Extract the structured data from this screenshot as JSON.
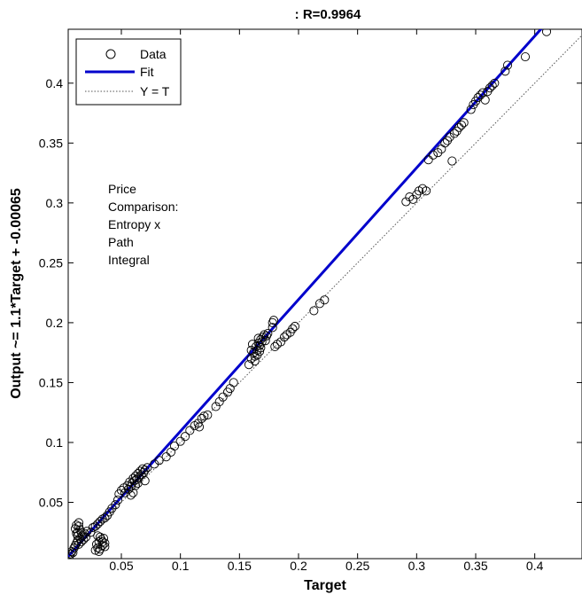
{
  "chart_data": {
    "type": "scatter",
    "title": ": R=0.9964",
    "xlabel": "Target",
    "ylabel": "Output ~= 1.1*Target + -0.00065",
    "xlim": [
      0.005,
      0.44
    ],
    "ylim": [
      0.003,
      0.445
    ],
    "xticks": [
      0.05,
      0.1,
      0.15,
      0.2,
      0.25,
      0.3,
      0.35,
      0.4
    ],
    "yticks": [
      0.05,
      0.1,
      0.15,
      0.2,
      0.25,
      0.3,
      0.35,
      0.4
    ],
    "xtick_labels": [
      "0.05",
      "0.1",
      "0.15",
      "0.2",
      "0.25",
      "0.3",
      "0.35",
      "0.4"
    ],
    "ytick_labels": [
      "0.05",
      "0.1",
      "0.15",
      "0.2",
      "0.25",
      "0.3",
      "0.35",
      "0.4"
    ],
    "grid": false,
    "legend_position": "top-left",
    "legend": [
      {
        "label": "Data",
        "style": "marker",
        "color": "#000000"
      },
      {
        "label": "Fit",
        "style": "line",
        "color": "#0000cc"
      },
      {
        "label": "Y = T",
        "style": "dotted",
        "color": "#555555"
      }
    ],
    "annotation": [
      "Price",
      "Comparison:",
      "Entropy x",
      "Path",
      "Integral"
    ],
    "fit": {
      "slope": 1.1,
      "intercept": -0.00065,
      "color": "#0000cc"
    },
    "identity_line": {
      "color": "#555555"
    },
    "series": [
      {
        "name": "Data",
        "points": [
          [
            0.006,
            0.005
          ],
          [
            0.007,
            0.007
          ],
          [
            0.008,
            0.009
          ],
          [
            0.009,
            0.008
          ],
          [
            0.01,
            0.012
          ],
          [
            0.011,
            0.014
          ],
          [
            0.012,
            0.016
          ],
          [
            0.013,
            0.018
          ],
          [
            0.014,
            0.015
          ],
          [
            0.015,
            0.02
          ],
          [
            0.016,
            0.017
          ],
          [
            0.017,
            0.022
          ],
          [
            0.018,
            0.019
          ],
          [
            0.019,
            0.024
          ],
          [
            0.02,
            0.021
          ],
          [
            0.021,
            0.026
          ],
          [
            0.011,
            0.028
          ],
          [
            0.012,
            0.031
          ],
          [
            0.013,
            0.025
          ],
          [
            0.014,
            0.03
          ],
          [
            0.013,
            0.022
          ],
          [
            0.015,
            0.027
          ],
          [
            0.012,
            0.024
          ],
          [
            0.014,
            0.033
          ],
          [
            0.016,
            0.025
          ],
          [
            0.024,
            0.025
          ],
          [
            0.026,
            0.029
          ],
          [
            0.028,
            0.03
          ],
          [
            0.03,
            0.032
          ],
          [
            0.032,
            0.034
          ],
          [
            0.034,
            0.036
          ],
          [
            0.036,
            0.037
          ],
          [
            0.038,
            0.039
          ],
          [
            0.028,
            0.01
          ],
          [
            0.029,
            0.015
          ],
          [
            0.03,
            0.012
          ],
          [
            0.031,
            0.017
          ],
          [
            0.032,
            0.011
          ],
          [
            0.033,
            0.019
          ],
          [
            0.034,
            0.014
          ],
          [
            0.035,
            0.02
          ],
          [
            0.036,
            0.013
          ],
          [
            0.034,
            0.017
          ],
          [
            0.032,
            0.021
          ],
          [
            0.03,
            0.022
          ],
          [
            0.036,
            0.016
          ],
          [
            0.031,
            0.009
          ],
          [
            0.04,
            0.042
          ],
          [
            0.042,
            0.045
          ],
          [
            0.045,
            0.048
          ],
          [
            0.047,
            0.052
          ],
          [
            0.048,
            0.057
          ],
          [
            0.05,
            0.06
          ],
          [
            0.052,
            0.062
          ],
          [
            0.053,
            0.058
          ],
          [
            0.055,
            0.064
          ],
          [
            0.056,
            0.061
          ],
          [
            0.057,
            0.067
          ],
          [
            0.058,
            0.063
          ],
          [
            0.059,
            0.066
          ],
          [
            0.06,
            0.07
          ],
          [
            0.061,
            0.068
          ],
          [
            0.062,
            0.072
          ],
          [
            0.063,
            0.069
          ],
          [
            0.064,
            0.074
          ],
          [
            0.065,
            0.071
          ],
          [
            0.066,
            0.076
          ],
          [
            0.067,
            0.073
          ],
          [
            0.068,
            0.078
          ],
          [
            0.069,
            0.075
          ],
          [
            0.07,
            0.077
          ],
          [
            0.072,
            0.079
          ],
          [
            0.06,
            0.058
          ],
          [
            0.062,
            0.064
          ],
          [
            0.064,
            0.066
          ],
          [
            0.058,
            0.056
          ],
          [
            0.07,
            0.068
          ],
          [
            0.078,
            0.082
          ],
          [
            0.082,
            0.085
          ],
          [
            0.088,
            0.088
          ],
          [
            0.092,
            0.092
          ],
          [
            0.095,
            0.097
          ],
          [
            0.1,
            0.101
          ],
          [
            0.104,
            0.105
          ],
          [
            0.108,
            0.11
          ],
          [
            0.112,
            0.114
          ],
          [
            0.115,
            0.116
          ],
          [
            0.118,
            0.12
          ],
          [
            0.12,
            0.122
          ],
          [
            0.123,
            0.123
          ],
          [
            0.116,
            0.113
          ],
          [
            0.13,
            0.13
          ],
          [
            0.133,
            0.134
          ],
          [
            0.136,
            0.138
          ],
          [
            0.14,
            0.142
          ],
          [
            0.142,
            0.145
          ],
          [
            0.145,
            0.15
          ],
          [
            0.158,
            0.165
          ],
          [
            0.16,
            0.17
          ],
          [
            0.162,
            0.175
          ],
          [
            0.163,
            0.172
          ],
          [
            0.164,
            0.18
          ],
          [
            0.165,
            0.177
          ],
          [
            0.166,
            0.183
          ],
          [
            0.167,
            0.181
          ],
          [
            0.168,
            0.186
          ],
          [
            0.169,
            0.184
          ],
          [
            0.17,
            0.188
          ],
          [
            0.171,
            0.19
          ],
          [
            0.172,
            0.185
          ],
          [
            0.173,
            0.189
          ],
          [
            0.174,
            0.191
          ],
          [
            0.16,
            0.177
          ],
          [
            0.161,
            0.182
          ],
          [
            0.163,
            0.168
          ],
          [
            0.165,
            0.173
          ],
          [
            0.167,
            0.176
          ],
          [
            0.166,
            0.187
          ],
          [
            0.168,
            0.179
          ],
          [
            0.178,
            0.2
          ],
          [
            0.179,
            0.202
          ],
          [
            0.178,
            0.196
          ],
          [
            0.18,
            0.18
          ],
          [
            0.182,
            0.182
          ],
          [
            0.185,
            0.184
          ],
          [
            0.188,
            0.188
          ],
          [
            0.19,
            0.19
          ],
          [
            0.193,
            0.192
          ],
          [
            0.195,
            0.195
          ],
          [
            0.197,
            0.197
          ],
          [
            0.213,
            0.21
          ],
          [
            0.218,
            0.216
          ],
          [
            0.222,
            0.219
          ],
          [
            0.291,
            0.301
          ],
          [
            0.294,
            0.305
          ],
          [
            0.297,
            0.303
          ],
          [
            0.3,
            0.307
          ],
          [
            0.302,
            0.31
          ],
          [
            0.305,
            0.312
          ],
          [
            0.308,
            0.31
          ],
          [
            0.31,
            0.336
          ],
          [
            0.314,
            0.34
          ],
          [
            0.318,
            0.342
          ],
          [
            0.321,
            0.345
          ],
          [
            0.324,
            0.35
          ],
          [
            0.326,
            0.352
          ],
          [
            0.328,
            0.355
          ],
          [
            0.33,
            0.335
          ],
          [
            0.332,
            0.358
          ],
          [
            0.334,
            0.36
          ],
          [
            0.336,
            0.363
          ],
          [
            0.338,
            0.365
          ],
          [
            0.34,
            0.367
          ],
          [
            0.346,
            0.378
          ],
          [
            0.348,
            0.382
          ],
          [
            0.35,
            0.385
          ],
          [
            0.352,
            0.388
          ],
          [
            0.354,
            0.39
          ],
          [
            0.356,
            0.392
          ],
          [
            0.358,
            0.386
          ],
          [
            0.36,
            0.393
          ],
          [
            0.362,
            0.396
          ],
          [
            0.364,
            0.398
          ],
          [
            0.366,
            0.4
          ],
          [
            0.375,
            0.41
          ],
          [
            0.377,
            0.415
          ],
          [
            0.392,
            0.422
          ],
          [
            0.41,
            0.443
          ]
        ]
      }
    ]
  }
}
